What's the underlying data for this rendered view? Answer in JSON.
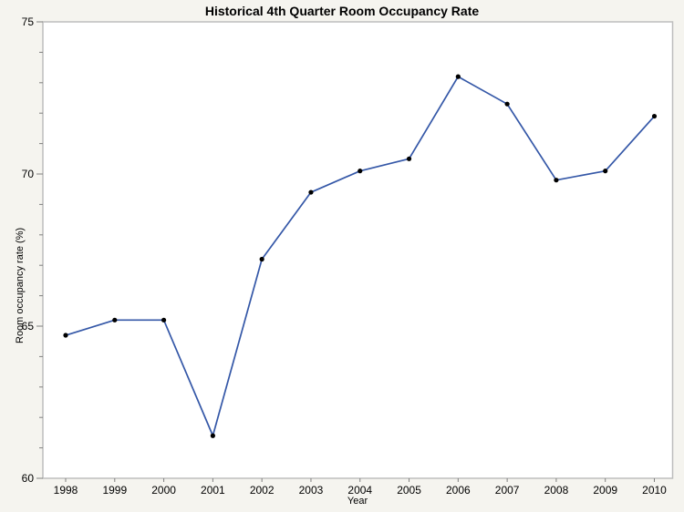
{
  "chart_data": {
    "type": "line",
    "title": "Historical 4th Quarter Room Occupancy Rate",
    "xlabel": "Year",
    "ylabel": "Room occupancy rate (%)",
    "x": [
      1998,
      1999,
      2000,
      2001,
      2002,
      2003,
      2004,
      2005,
      2006,
      2007,
      2008,
      2009,
      2010
    ],
    "values": [
      64.7,
      65.2,
      65.2,
      61.4,
      67.2,
      69.4,
      70.1,
      70.5,
      73.2,
      72.3,
      69.8,
      70.1,
      71.9
    ],
    "ylim": [
      60,
      75
    ],
    "y_major_ticks": [
      60,
      65,
      70,
      75
    ],
    "y_minor_tick_interval": 1,
    "grid": "off",
    "legend": "none",
    "line_color": "#3457A7",
    "marker_color": "#000000",
    "background_color": "#F5F4EF",
    "plot_background": "#FFFFFF",
    "frame_color": "#BEBEBE",
    "tick_color": "#7F7F7F"
  }
}
